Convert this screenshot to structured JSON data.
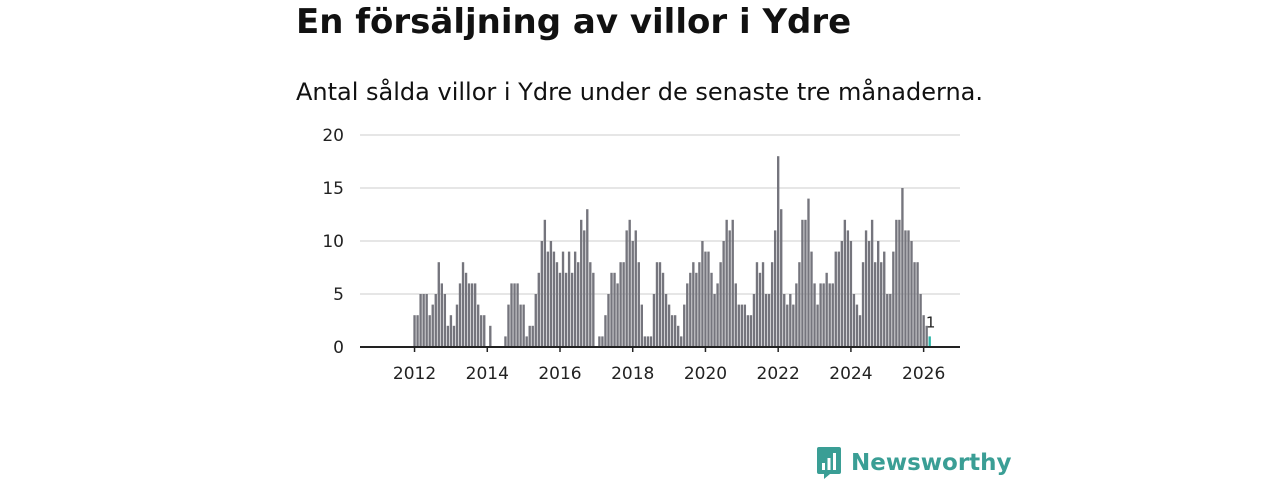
{
  "header": {
    "title": "En försäljning av villor i Ydre",
    "subtitle": "Antal sålda villor i Ydre under de senaste tre månaderna."
  },
  "brand": {
    "name": "Newsworthy",
    "color": "#3a9e95"
  },
  "colors": {
    "bar": "#75757d",
    "highlight": "#2bb5a8",
    "grid": "#dddddd",
    "axis": "#222222"
  },
  "chart_data": {
    "type": "bar",
    "title": "En försäljning av villor i Ydre",
    "subtitle": "Antal sålda villor i Ydre under de senaste tre månaderna.",
    "xlabel": "",
    "ylabel": "",
    "ylim": [
      0,
      20
    ],
    "yticks": [
      0,
      5,
      10,
      15,
      20
    ],
    "xticks": [
      "2012",
      "2014",
      "2016",
      "2018",
      "2020",
      "2022",
      "2024",
      "2026"
    ],
    "x_start": "2012-01",
    "x_range_years": [
      2010.5,
      2027
    ],
    "grid": true,
    "values": [
      3,
      3,
      5,
      5,
      5,
      3,
      4,
      5,
      8,
      6,
      5,
      2,
      3,
      2,
      4,
      6,
      8,
      7,
      6,
      6,
      6,
      4,
      3,
      3,
      0,
      2,
      0,
      0,
      0,
      0,
      1,
      4,
      6,
      6,
      6,
      4,
      4,
      1,
      2,
      2,
      5,
      7,
      10,
      12,
      9,
      10,
      9,
      8,
      7,
      9,
      7,
      9,
      7,
      9,
      8,
      12,
      11,
      13,
      8,
      7,
      0,
      1,
      1,
      3,
      5,
      7,
      7,
      6,
      8,
      8,
      11,
      12,
      10,
      11,
      8,
      4,
      1,
      1,
      1,
      5,
      8,
      8,
      7,
      5,
      4,
      3,
      3,
      2,
      1,
      4,
      6,
      7,
      8,
      7,
      8,
      10,
      9,
      9,
      7,
      5,
      6,
      8,
      10,
      12,
      11,
      12,
      6,
      4,
      4,
      4,
      3,
      3,
      5,
      8,
      7,
      8,
      5,
      5,
      8,
      11,
      18,
      13,
      5,
      4,
      5,
      4,
      6,
      8,
      12,
      12,
      14,
      9,
      6,
      4,
      6,
      6,
      7,
      6,
      6,
      9,
      9,
      10,
      12,
      11,
      10,
      5,
      4,
      3,
      8,
      11,
      10,
      12,
      8,
      10,
      8,
      9,
      5,
      5,
      9,
      12,
      12,
      15,
      11,
      11,
      10,
      8,
      8,
      5,
      3,
      2,
      1
    ],
    "highlight_last": true,
    "last_label": "1"
  }
}
